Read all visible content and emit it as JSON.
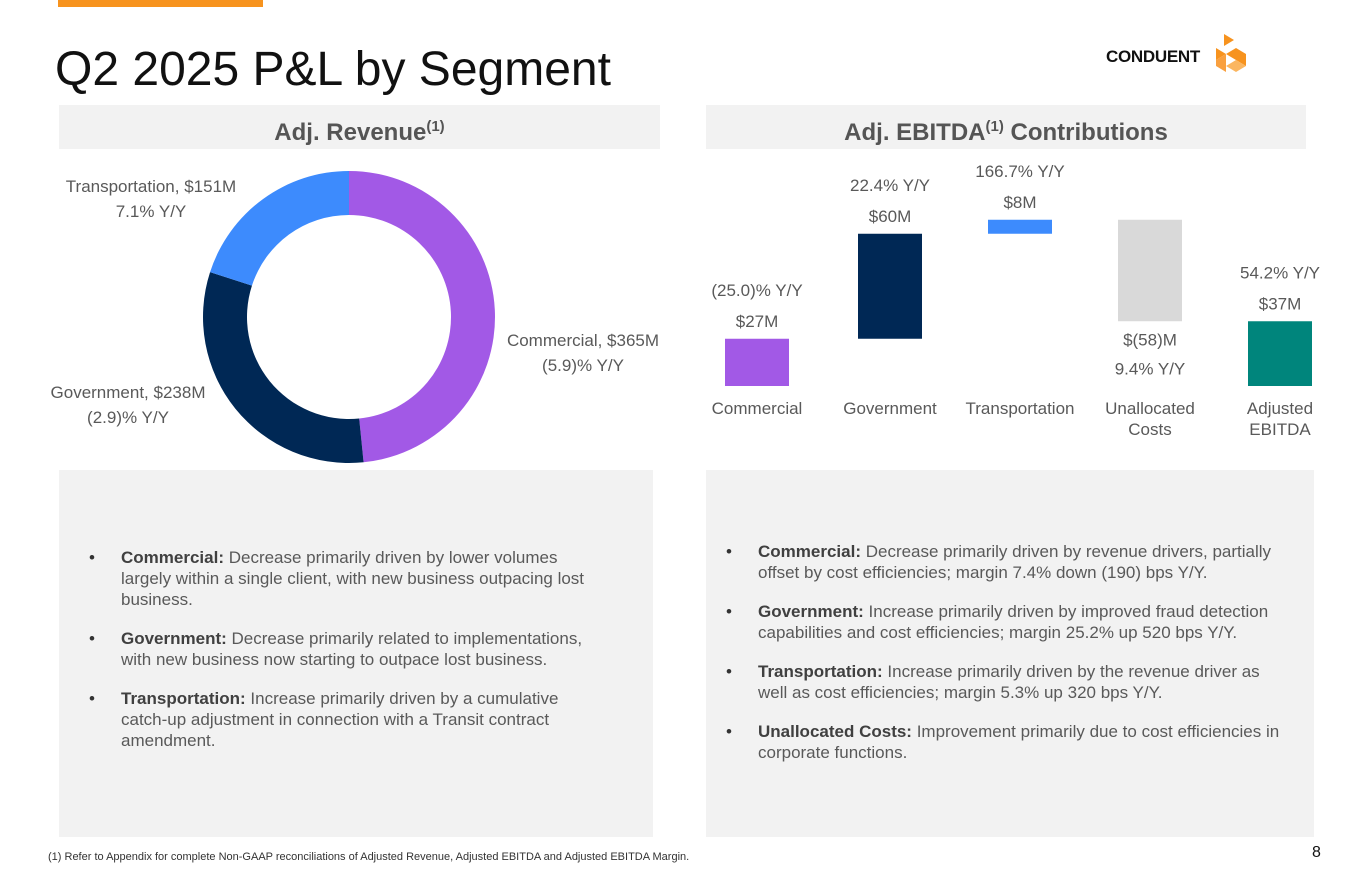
{
  "title": "Q2 2025 P&L by Segment",
  "brand": {
    "name": "CONDUENT",
    "color": "#f7931e"
  },
  "revenue_header": {
    "label": "Adj. Revenue",
    "sup": "(1)"
  },
  "ebitda_header": {
    "label": "Adj. EBITDA",
    "sup": "(1)",
    "suffix": " Contributions"
  },
  "chart_data": [
    {
      "type": "pie",
      "donut": true,
      "title": "Adj. Revenue",
      "units": "$M",
      "slices": [
        {
          "name": "Commercial",
          "value": 365,
          "label": "Commercial, $365M",
          "yy": "(5.9)% Y/Y",
          "color": "#a259e6"
        },
        {
          "name": "Government",
          "value": 238,
          "label": "Government, $238M",
          "yy": "(2.9)% Y/Y",
          "color": "#002855"
        },
        {
          "name": "Transportation",
          "value": 151,
          "label": "Transportation, $151M",
          "yy": "7.1% Y/Y",
          "color": "#3d8bfd"
        }
      ]
    },
    {
      "type": "bar",
      "subtype": "waterfall",
      "title": "Adj. EBITDA Contributions",
      "units": "$M",
      "categories": [
        "Commercial",
        "Government",
        "Transportation",
        "Unallocated Costs",
        "Adjusted EBITDA"
      ],
      "category_lines": [
        [
          "Commercial"
        ],
        [
          "Government"
        ],
        [
          "Transportation"
        ],
        [
          "Unallocated",
          "Costs"
        ],
        [
          "Adjusted",
          "EBITDA"
        ]
      ],
      "values": [
        27,
        60,
        8,
        -58,
        37
      ],
      "value_labels": [
        "$27M",
        "$60M",
        "$8M",
        "$(58)M",
        "$37M"
      ],
      "yy_labels": [
        "(25.0)% Y/Y",
        "22.4% Y/Y",
        "166.7% Y/Y",
        "9.4% Y/Y",
        "54.2% Y/Y"
      ],
      "total_index": 4,
      "colors": [
        "#a259e6",
        "#002855",
        "#3d8bfd",
        "#d9d9d9",
        "#00857c"
      ],
      "ylim": [
        0,
        100
      ]
    }
  ],
  "notes_left": [
    {
      "bold": "Commercial:",
      "text": " Decrease primarily driven by lower volumes largely within a single client, with new business outpacing lost business."
    },
    {
      "bold": "Government:",
      "text": " Decrease primarily related to implementations, with new business now starting to outpace lost business."
    },
    {
      "bold": "Transportation:",
      "text": " Increase primarily driven by a cumulative catch-up adjustment in connection with a Transit contract amendment."
    }
  ],
  "notes_right": [
    {
      "bold": "Commercial:",
      "text": " Decrease primarily driven by revenue drivers, partially offset by cost efficiencies; margin 7.4% down (190) bps Y/Y."
    },
    {
      "bold": "Government:",
      "text": " Increase primarily driven by improved fraud detection capabilities and cost efficiencies; margin 25.2% up 520 bps Y/Y."
    },
    {
      "bold": "Transportation:",
      "text": " Increase primarily driven by the revenue driver as well as cost efficiencies; margin 5.3% up 320 bps Y/Y."
    },
    {
      "bold": "Unallocated Costs:",
      "text": " Improvement primarily due to cost efficiencies in corporate functions."
    }
  ],
  "footnote": "(1) Refer to Appendix for complete Non-GAAP reconciliations of Adjusted Revenue, Adjusted EBITDA and Adjusted EBITDA Margin.",
  "page_number": "8"
}
